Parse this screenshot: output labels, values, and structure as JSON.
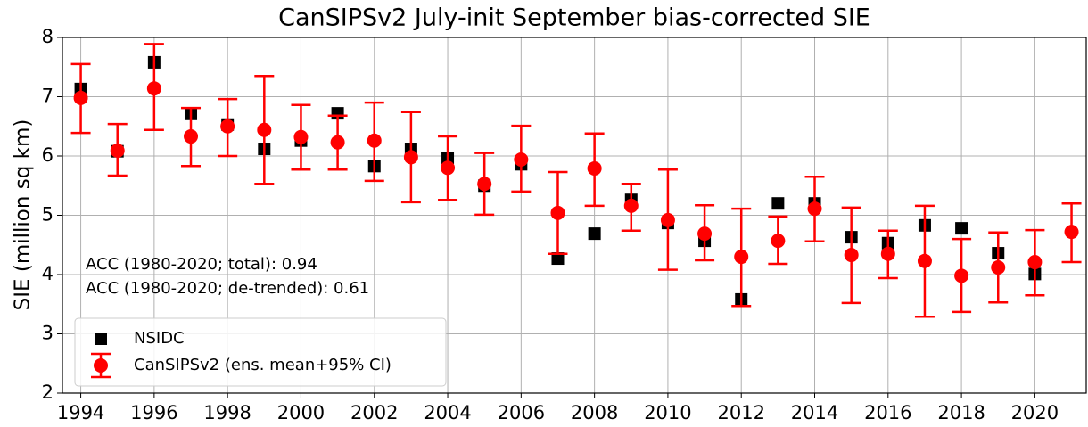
{
  "chart_data": {
    "type": "errorbar-scatter",
    "title": "CanSIPSv2 July-init September bias-corrected SIE",
    "ylabel": "SIE (million sq km)",
    "annotations": [
      "ACC (1980-2020; total): 0.94",
      "ACC (1980-2020; de-trended): 0.61"
    ],
    "x": [
      1994,
      1995,
      1996,
      1997,
      1998,
      1999,
      2000,
      2001,
      2002,
      2003,
      2004,
      2005,
      2006,
      2007,
      2008,
      2009,
      2010,
      2011,
      2012,
      2013,
      2014,
      2015,
      2016,
      2017,
      2018,
      2019,
      2020,
      2021
    ],
    "series": [
      {
        "name": "NSIDC",
        "color": "#000000",
        "marker": "square",
        "values": [
          7.13,
          6.08,
          7.58,
          6.71,
          6.53,
          6.12,
          6.26,
          6.72,
          5.83,
          6.12,
          5.97,
          5.5,
          5.86,
          4.27,
          4.69,
          5.26,
          4.87,
          4.57,
          3.58,
          5.2,
          5.2,
          4.63,
          4.53,
          4.83,
          4.78,
          4.36,
          4.01,
          null
        ]
      },
      {
        "name": "CanSIPSv2 (ens. mean+95% CI)",
        "color": "#ff0000",
        "marker": "circle",
        "values": [
          6.98,
          6.09,
          7.14,
          6.33,
          6.5,
          6.44,
          6.32,
          6.23,
          6.26,
          5.98,
          5.8,
          5.53,
          5.94,
          5.04,
          5.79,
          5.16,
          4.92,
          4.69,
          4.3,
          4.57,
          5.11,
          4.33,
          4.35,
          4.23,
          3.98,
          4.12,
          4.21,
          4.72
        ],
        "lower": [
          6.39,
          5.67,
          6.44,
          5.83,
          6.0,
          5.53,
          5.77,
          5.77,
          5.58,
          5.22,
          5.26,
          5.01,
          5.4,
          4.35,
          5.16,
          4.74,
          4.08,
          4.24,
          3.47,
          4.18,
          4.56,
          3.52,
          3.94,
          3.29,
          3.37,
          3.53,
          3.65,
          4.21
        ],
        "upper": [
          7.55,
          6.54,
          7.89,
          6.81,
          6.96,
          7.35,
          6.86,
          6.68,
          6.9,
          6.74,
          6.33,
          6.05,
          6.51,
          5.73,
          6.38,
          5.53,
          5.77,
          5.17,
          5.11,
          4.98,
          5.65,
          5.13,
          4.74,
          5.16,
          4.6,
          4.71,
          4.75,
          5.2
        ]
      }
    ],
    "xlim": [
      1993.5,
      2021.4
    ],
    "xticks": [
      1994,
      1996,
      1998,
      2000,
      2002,
      2004,
      2006,
      2008,
      2010,
      2012,
      2014,
      2016,
      2018,
      2020
    ],
    "ylim": [
      2,
      8
    ],
    "yticks": [
      2,
      3,
      4,
      5,
      6,
      7,
      8
    ],
    "grid": true,
    "legend": "lower left"
  }
}
